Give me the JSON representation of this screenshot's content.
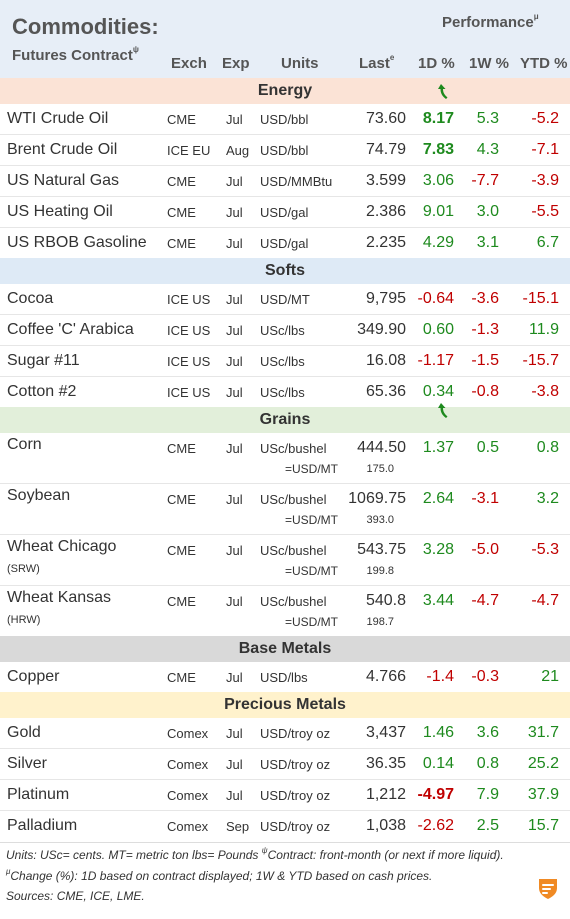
{
  "header": {
    "title": "Commodities:",
    "subtitle": "Futures Contract",
    "subtitle_mark": "ψ",
    "performance": "Performance",
    "performance_mark": "μ",
    "cols": {
      "exch": "Exch",
      "exp": "Exp",
      "units": "Units",
      "last": "Last",
      "last_mark": "e",
      "d1": "1D %",
      "w1": "1W %",
      "ytd": "YTD %"
    }
  },
  "sections": {
    "energy": "Energy",
    "softs": "Softs",
    "grains": "Grains",
    "base": "Base Metals",
    "precious": "Precious Metals"
  },
  "energy": [
    {
      "name": "WTI Crude Oil",
      "exch": "CME",
      "exp": "Jul",
      "unit": "USD/bbl",
      "last": "73.60",
      "d1": "8.17",
      "w1": "5.3",
      "ytd": "-5.2"
    },
    {
      "name": "Brent Crude Oil",
      "exch": "ICE EU",
      "exp": "Aug",
      "unit": "USD/bbl",
      "last": "74.79",
      "d1": "7.83",
      "w1": "4.3",
      "ytd": "-7.1"
    },
    {
      "name": "US Natural Gas",
      "exch": "CME",
      "exp": "Jul",
      "unit": "USD/MMBtu",
      "last": "3.599",
      "d1": "3.06",
      "w1": "-7.7",
      "ytd": "-3.9"
    },
    {
      "name": "US Heating Oil",
      "exch": "CME",
      "exp": "Jul",
      "unit": "USD/gal",
      "last": "2.386",
      "d1": "9.01",
      "w1": "3.0",
      "ytd": "-5.5"
    },
    {
      "name": "US RBOB Gasoline",
      "exch": "CME",
      "exp": "Jul",
      "unit": "USD/gal",
      "last": "2.235",
      "d1": "4.29",
      "w1": "3.1",
      "ytd": "6.7"
    }
  ],
  "softs": [
    {
      "name": "Cocoa",
      "exch": "ICE US",
      "exp": "Jul",
      "unit": "USD/MT",
      "last": "9,795",
      "d1": "-0.64",
      "w1": "-3.6",
      "ytd": "-15.1"
    },
    {
      "name": "Coffee 'C' Arabica",
      "exch": "ICE US",
      "exp": "Jul",
      "unit": "USc/lbs",
      "last": "349.90",
      "d1": "0.60",
      "w1": "-1.3",
      "ytd": "11.9"
    },
    {
      "name": "Sugar #11",
      "exch": "ICE US",
      "exp": "Jul",
      "unit": "USc/lbs",
      "last": "16.08",
      "d1": "-1.17",
      "w1": "-1.5",
      "ytd": "-15.7"
    },
    {
      "name": "Cotton #2",
      "exch": "ICE US",
      "exp": "Jul",
      "unit": "USc/lbs",
      "last": "65.36",
      "d1": "0.34",
      "w1": "-0.8",
      "ytd": "-3.8"
    }
  ],
  "grains": [
    {
      "name": "Corn",
      "sub": "",
      "exch": "CME",
      "exp": "Jul",
      "unit": "USc/bushel",
      "last": "444.50",
      "d1": "1.37",
      "w1": "0.5",
      "ytd": "0.8",
      "conv_unit": "=USD/MT",
      "conv_val": "175.0"
    },
    {
      "name": "Soybean",
      "sub": "",
      "exch": "CME",
      "exp": "Jul",
      "unit": "USc/bushel",
      "last": "1069.75",
      "d1": "2.64",
      "w1": "-3.1",
      "ytd": "3.2",
      "conv_unit": "=USD/MT",
      "conv_val": "393.0"
    },
    {
      "name": "Wheat Chicago",
      "sub": "(SRW)",
      "exch": "CME",
      "exp": "Jul",
      "unit": "USc/bushel",
      "last": "543.75",
      "d1": "3.28",
      "w1": "-5.0",
      "ytd": "-5.3",
      "conv_unit": "=USD/MT",
      "conv_val": "199.8"
    },
    {
      "name": "Wheat Kansas",
      "sub": "(HRW)",
      "exch": "CME",
      "exp": "Jul",
      "unit": "USc/bushel",
      "last": "540.8",
      "d1": "3.44",
      "w1": "-4.7",
      "ytd": "-4.7",
      "conv_unit": "=USD/MT",
      "conv_val": "198.7"
    }
  ],
  "base": [
    {
      "name": "Copper",
      "exch": "CME",
      "exp": "Jul",
      "unit": "USD/lbs",
      "last": "4.766",
      "d1": "-1.4",
      "w1": "-0.3",
      "ytd": "21"
    }
  ],
  "precious": [
    {
      "name": "Gold",
      "exch": "Comex",
      "exp": "Jul",
      "unit": "USD/troy oz",
      "last": "3,437",
      "d1": "1.46",
      "w1": "3.6",
      "ytd": "31.7"
    },
    {
      "name": "Silver",
      "exch": "Comex",
      "exp": "Jul",
      "unit": "USD/troy oz",
      "last": "36.35",
      "d1": "0.14",
      "w1": "0.8",
      "ytd": "25.2"
    },
    {
      "name": "Platinum",
      "exch": "Comex",
      "exp": "Jul",
      "unit": "USD/troy oz",
      "last": "1,212",
      "d1": "-4.97",
      "w1": "7.9",
      "ytd": "37.9"
    },
    {
      "name": "Palladium",
      "exch": "Comex",
      "exp": "Sep",
      "unit": "USD/troy oz",
      "last": "1,038",
      "d1": "-2.62",
      "w1": "2.5",
      "ytd": "15.7"
    }
  ],
  "footer": {
    "line1": "Units: USc= cents.   MT= metric ton    lbs= Pounds",
    "line1_mark": "ψ",
    "line1_b": "Contract: front-month (or next if more liquid).",
    "line2_mark": "μ",
    "line2": "Change (%): 1D based on contract displayed; 1W & YTD based on cash prices.",
    "line3": "Sources: CME, ICE, LME."
  },
  "colors": {
    "positive": "#1e8a1e",
    "negative": "#c00000",
    "logo": "#f08a24"
  },
  "icons": {
    "up_arrow": "curved-up-arrow-icon",
    "logo": "brand-logo-icon"
  }
}
